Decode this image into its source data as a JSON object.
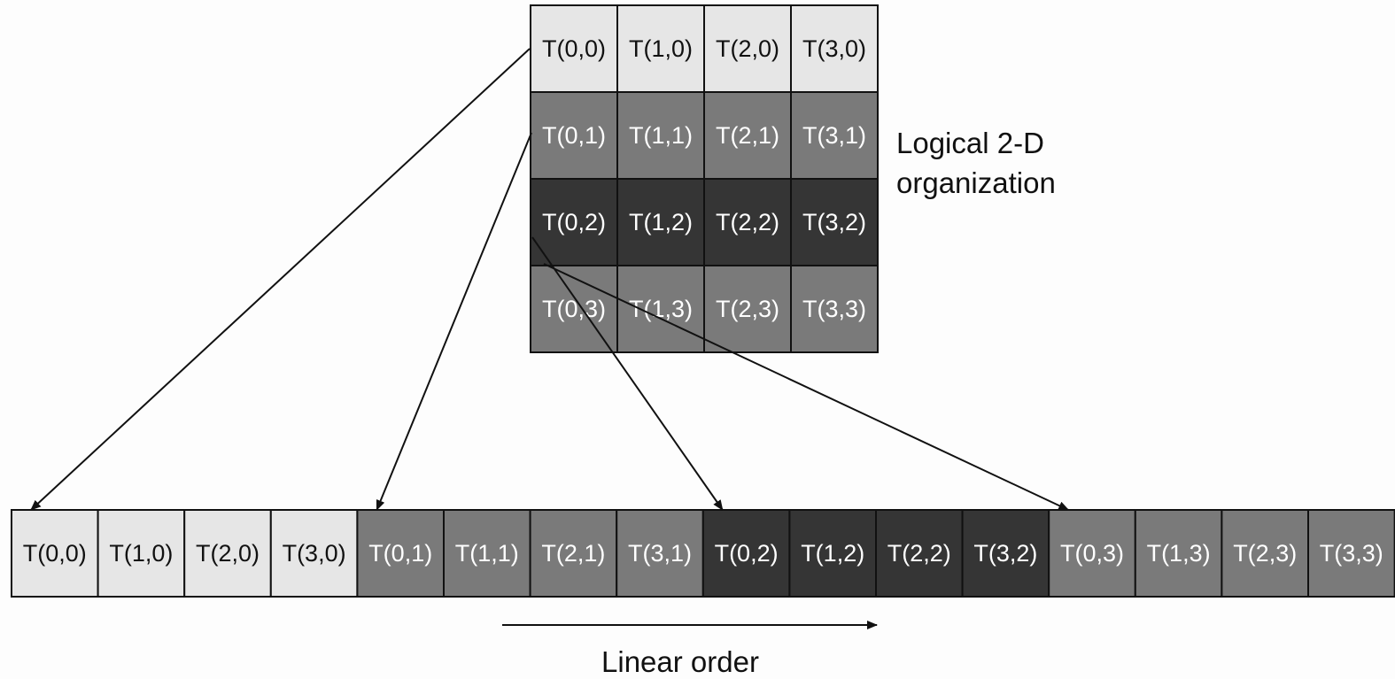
{
  "grid": {
    "rows": [
      {
        "shade": "light",
        "cells": [
          "T(0,0)",
          "T(1,0)",
          "T(2,0)",
          "T(3,0)"
        ]
      },
      {
        "shade": "medium",
        "cells": [
          "T(0,1)",
          "T(1,1)",
          "T(2,1)",
          "T(3,1)"
        ]
      },
      {
        "shade": "dark",
        "cells": [
          "T(0,2)",
          "T(1,2)",
          "T(2,2)",
          "T(3,2)"
        ]
      },
      {
        "shade": "medium",
        "cells": [
          "T(0,3)",
          "T(1,3)",
          "T(2,3)",
          "T(3,3)"
        ]
      }
    ]
  },
  "linear": {
    "cells": [
      {
        "label": "T(0,0)",
        "shade": "light"
      },
      {
        "label": "T(1,0)",
        "shade": "light"
      },
      {
        "label": "T(2,0)",
        "shade": "light"
      },
      {
        "label": "T(3,0)",
        "shade": "light"
      },
      {
        "label": "T(0,1)",
        "shade": "medium"
      },
      {
        "label": "T(1,1)",
        "shade": "medium"
      },
      {
        "label": "T(2,1)",
        "shade": "medium"
      },
      {
        "label": "T(3,1)",
        "shade": "medium"
      },
      {
        "label": "T(0,2)",
        "shade": "dark"
      },
      {
        "label": "T(1,2)",
        "shade": "dark"
      },
      {
        "label": "T(2,2)",
        "shade": "dark"
      },
      {
        "label": "T(3,2)",
        "shade": "dark"
      },
      {
        "label": "T(0,3)",
        "shade": "medium"
      },
      {
        "label": "T(1,3)",
        "shade": "medium"
      },
      {
        "label": "T(2,3)",
        "shade": "medium"
      },
      {
        "label": "T(3,3)",
        "shade": "medium"
      }
    ]
  },
  "labels": {
    "logical_line1": "Logical 2-D",
    "logical_line2": "organization",
    "linear_order": "Linear order"
  },
  "colors": {
    "light": "#e6e6e6",
    "medium": "#7a7a7a",
    "dark": "#353535",
    "light_text": "#111111",
    "dark_text": "#ffffff",
    "border": "#111111"
  },
  "mappings": [
    {
      "from_row": 0,
      "to_index": 0
    },
    {
      "from_row": 1,
      "to_index": 4
    },
    {
      "from_row": 2,
      "to_index": 8
    },
    {
      "from_row": 3,
      "to_index": 12
    }
  ]
}
